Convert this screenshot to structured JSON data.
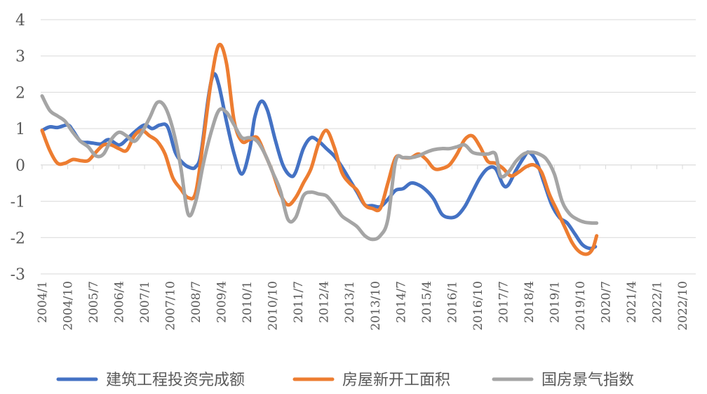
{
  "chart_data": {
    "type": "line",
    "title": "",
    "xlabel": "",
    "ylabel": "",
    "ylim": [
      -3,
      4
    ],
    "yticks": [
      4,
      3,
      2,
      1,
      0,
      -1,
      -2,
      -3
    ],
    "grid": "horizontal",
    "legend_position": "bottom",
    "x_tick_labels": [
      "2004/1",
      "2004/10",
      "2005/7",
      "2006/4",
      "2007/1",
      "2007/10",
      "2008/7",
      "2009/4",
      "2010/1",
      "2010/10",
      "2011/7",
      "2012/4",
      "2013/1",
      "2013/10",
      "2014/7",
      "2015/4",
      "2016/1",
      "2016/10",
      "2017/7",
      "2018/4",
      "2019/1",
      "2019/10",
      "2020/7",
      "2021/4",
      "2022/1",
      "2022/10"
    ],
    "series": [
      {
        "name": "建筑工程投资完成额",
        "color": "#4472C4",
        "points": [
          [
            0,
            0.95
          ],
          [
            0.3,
            1.05
          ],
          [
            0.6,
            1.03
          ],
          [
            1.0,
            1.1
          ],
          [
            1.2,
            0.95
          ],
          [
            1.5,
            0.65
          ],
          [
            1.8,
            0.62
          ],
          [
            2.0,
            0.6
          ],
          [
            2.3,
            0.58
          ],
          [
            2.6,
            0.7
          ],
          [
            3.0,
            0.55
          ],
          [
            3.3,
            0.7
          ],
          [
            3.6,
            0.9
          ],
          [
            4.0,
            1.1
          ],
          [
            4.3,
            1.0
          ],
          [
            4.6,
            1.1
          ],
          [
            4.9,
            1.05
          ],
          [
            5.2,
            0.35
          ],
          [
            5.5,
            0.05
          ],
          [
            5.8,
            -0.08
          ],
          [
            6.0,
            -0.05
          ],
          [
            6.2,
            0.3
          ],
          [
            6.5,
            1.9
          ],
          [
            6.7,
            2.5
          ],
          [
            6.9,
            2.2
          ],
          [
            7.2,
            1.2
          ],
          [
            7.5,
            0.3
          ],
          [
            7.8,
            -0.25
          ],
          [
            8.1,
            0.4
          ],
          [
            8.3,
            1.3
          ],
          [
            8.55,
            1.75
          ],
          [
            8.8,
            1.5
          ],
          [
            9.1,
            0.7
          ],
          [
            9.4,
            0.0
          ],
          [
            9.7,
            -0.3
          ],
          [
            9.9,
            -0.2
          ],
          [
            10.2,
            0.45
          ],
          [
            10.5,
            0.75
          ],
          [
            10.8,
            0.65
          ],
          [
            11.1,
            0.45
          ],
          [
            11.4,
            0.25
          ],
          [
            11.7,
            -0.05
          ],
          [
            12.0,
            -0.4
          ],
          [
            12.3,
            -0.75
          ],
          [
            12.6,
            -1.1
          ],
          [
            12.9,
            -1.12
          ],
          [
            13.2,
            -1.15
          ],
          [
            13.5,
            -0.95
          ],
          [
            13.8,
            -0.7
          ],
          [
            14.1,
            -0.65
          ],
          [
            14.4,
            -0.5
          ],
          [
            14.7,
            -0.55
          ],
          [
            15.0,
            -0.7
          ],
          [
            15.3,
            -0.95
          ],
          [
            15.6,
            -1.35
          ],
          [
            15.9,
            -1.45
          ],
          [
            16.2,
            -1.4
          ],
          [
            16.5,
            -1.15
          ],
          [
            16.8,
            -0.75
          ],
          [
            17.1,
            -0.35
          ],
          [
            17.4,
            -0.1
          ],
          [
            17.7,
            -0.1
          ],
          [
            18.0,
            -0.55
          ],
          [
            18.2,
            -0.55
          ],
          [
            18.5,
            -0.15
          ],
          [
            18.8,
            0.2
          ],
          [
            19.0,
            0.35
          ],
          [
            19.3,
            0.1
          ],
          [
            19.6,
            -0.5
          ],
          [
            19.9,
            -1.1
          ],
          [
            20.2,
            -1.45
          ],
          [
            20.5,
            -1.6
          ],
          [
            20.8,
            -1.9
          ],
          [
            21.1,
            -2.2
          ],
          [
            21.4,
            -2.3
          ],
          [
            21.6,
            -2.25
          ]
        ]
      },
      {
        "name": "房屋新开工面积",
        "color": "#ED7D31",
        "points": [
          [
            0,
            0.95
          ],
          [
            0.3,
            0.4
          ],
          [
            0.6,
            0.05
          ],
          [
            0.9,
            0.05
          ],
          [
            1.2,
            0.15
          ],
          [
            1.5,
            0.12
          ],
          [
            1.8,
            0.12
          ],
          [
            2.1,
            0.35
          ],
          [
            2.4,
            0.55
          ],
          [
            2.7,
            0.55
          ],
          [
            3.0,
            0.45
          ],
          [
            3.3,
            0.4
          ],
          [
            3.6,
            0.8
          ],
          [
            3.9,
            0.95
          ],
          [
            4.2,
            0.8
          ],
          [
            4.5,
            0.65
          ],
          [
            4.8,
            0.3
          ],
          [
            5.1,
            -0.35
          ],
          [
            5.4,
            -0.65
          ],
          [
            5.7,
            -0.9
          ],
          [
            6.0,
            -0.75
          ],
          [
            6.3,
            0.7
          ],
          [
            6.6,
            2.3
          ],
          [
            6.9,
            3.3
          ],
          [
            7.2,
            2.8
          ],
          [
            7.5,
            1.2
          ],
          [
            7.8,
            0.65
          ],
          [
            8.1,
            0.7
          ],
          [
            8.4,
            0.75
          ],
          [
            8.7,
            0.3
          ],
          [
            9.0,
            -0.2
          ],
          [
            9.3,
            -0.8
          ],
          [
            9.6,
            -1.1
          ],
          [
            9.9,
            -0.9
          ],
          [
            10.2,
            -0.5
          ],
          [
            10.5,
            -0.1
          ],
          [
            10.8,
            0.6
          ],
          [
            11.1,
            0.95
          ],
          [
            11.4,
            0.5
          ],
          [
            11.7,
            -0.2
          ],
          [
            12.0,
            -0.5
          ],
          [
            12.3,
            -0.7
          ],
          [
            12.6,
            -1.1
          ],
          [
            12.9,
            -1.2
          ],
          [
            13.2,
            -1.2
          ],
          [
            13.5,
            -0.5
          ],
          [
            13.8,
            0.2
          ],
          [
            14.1,
            0.2
          ],
          [
            14.4,
            0.2
          ],
          [
            14.7,
            0.3
          ],
          [
            15.0,
            0.15
          ],
          [
            15.3,
            -0.1
          ],
          [
            15.6,
            -0.1
          ],
          [
            15.9,
            0.0
          ],
          [
            16.2,
            0.3
          ],
          [
            16.5,
            0.7
          ],
          [
            16.8,
            0.8
          ],
          [
            17.1,
            0.5
          ],
          [
            17.4,
            0.1
          ],
          [
            17.7,
            0.05
          ],
          [
            18.0,
            -0.1
          ],
          [
            18.3,
            -0.3
          ],
          [
            18.6,
            -0.2
          ],
          [
            18.9,
            -0.05
          ],
          [
            19.2,
            0.0
          ],
          [
            19.5,
            -0.2
          ],
          [
            19.8,
            -0.8
          ],
          [
            20.1,
            -1.25
          ],
          [
            20.4,
            -1.7
          ],
          [
            20.7,
            -2.15
          ],
          [
            21.0,
            -2.4
          ],
          [
            21.3,
            -2.45
          ],
          [
            21.5,
            -2.3
          ],
          [
            21.65,
            -1.95
          ]
        ]
      },
      {
        "name": "国房景气指数",
        "color": "#A5A5A5",
        "points": [
          [
            0,
            1.9
          ],
          [
            0.3,
            1.5
          ],
          [
            0.6,
            1.35
          ],
          [
            0.9,
            1.2
          ],
          [
            1.2,
            0.9
          ],
          [
            1.5,
            0.65
          ],
          [
            1.8,
            0.5
          ],
          [
            2.1,
            0.25
          ],
          [
            2.4,
            0.3
          ],
          [
            2.7,
            0.7
          ],
          [
            3.0,
            0.9
          ],
          [
            3.3,
            0.8
          ],
          [
            3.6,
            0.65
          ],
          [
            3.9,
            0.9
          ],
          [
            4.2,
            1.3
          ],
          [
            4.5,
            1.72
          ],
          [
            4.8,
            1.6
          ],
          [
            5.1,
            1.0
          ],
          [
            5.4,
            0.0
          ],
          [
            5.7,
            -1.35
          ],
          [
            6.0,
            -1.0
          ],
          [
            6.3,
            0.05
          ],
          [
            6.6,
            0.9
          ],
          [
            6.9,
            1.5
          ],
          [
            7.2,
            1.45
          ],
          [
            7.5,
            1.1
          ],
          [
            7.8,
            0.75
          ],
          [
            8.1,
            0.75
          ],
          [
            8.4,
            0.65
          ],
          [
            8.7,
            0.3
          ],
          [
            9.0,
            -0.2
          ],
          [
            9.3,
            -0.7
          ],
          [
            9.6,
            -1.5
          ],
          [
            9.9,
            -1.45
          ],
          [
            10.2,
            -0.85
          ],
          [
            10.5,
            -0.75
          ],
          [
            10.8,
            -0.8
          ],
          [
            11.1,
            -0.85
          ],
          [
            11.4,
            -1.1
          ],
          [
            11.7,
            -1.4
          ],
          [
            12.0,
            -1.55
          ],
          [
            12.3,
            -1.7
          ],
          [
            12.6,
            -1.95
          ],
          [
            12.9,
            -2.05
          ],
          [
            13.2,
            -1.95
          ],
          [
            13.5,
            -1.5
          ],
          [
            13.8,
            0.1
          ],
          [
            14.1,
            0.2
          ],
          [
            14.4,
            0.2
          ],
          [
            14.7,
            0.25
          ],
          [
            15.0,
            0.35
          ],
          [
            15.3,
            0.42
          ],
          [
            15.6,
            0.45
          ],
          [
            15.9,
            0.45
          ],
          [
            16.2,
            0.5
          ],
          [
            16.5,
            0.55
          ],
          [
            16.8,
            0.35
          ],
          [
            17.1,
            0.3
          ],
          [
            17.4,
            0.3
          ],
          [
            17.7,
            0.3
          ],
          [
            17.9,
            -0.3
          ],
          [
            18.2,
            -0.2
          ],
          [
            18.5,
            0.1
          ],
          [
            18.8,
            0.3
          ],
          [
            19.1,
            0.35
          ],
          [
            19.4,
            0.3
          ],
          [
            19.7,
            0.15
          ],
          [
            20.0,
            -0.25
          ],
          [
            20.3,
            -1.0
          ],
          [
            20.6,
            -1.35
          ],
          [
            20.9,
            -1.5
          ],
          [
            21.2,
            -1.58
          ],
          [
            21.5,
            -1.6
          ],
          [
            21.65,
            -1.6
          ]
        ]
      }
    ]
  }
}
